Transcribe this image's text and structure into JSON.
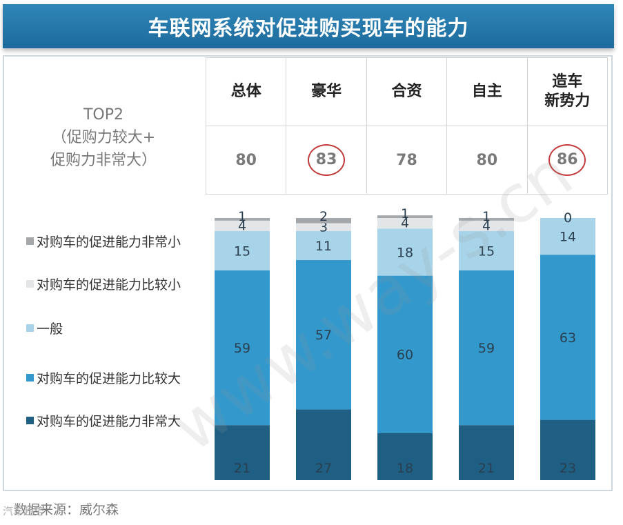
{
  "title": "车联网系统对促进购买现车的能力",
  "top2": {
    "line1": "TOP2",
    "line2": "（促购力较大+",
    "line3": "促购力非常大）",
    "groups": [
      {
        "line1": "总体",
        "line2": "",
        "value": "80",
        "circled": false
      },
      {
        "line1": "豪华",
        "line2": "",
        "value": "83",
        "circled": true
      },
      {
        "line1": "合资",
        "line2": "",
        "value": "78",
        "circled": false
      },
      {
        "line1": "自主",
        "line2": "",
        "value": "80",
        "circled": false
      },
      {
        "line1": "造车",
        "line2": "新势力",
        "value": "86",
        "circled": true
      }
    ]
  },
  "source": "数据来源：威尔森",
  "corner_mark": "汽车趋势",
  "watermark": "www.way-s.cn",
  "chart_data": {
    "type": "bar",
    "stacked": true,
    "categories": [
      "总体",
      "豪华",
      "合资",
      "自主",
      "造车新势力"
    ],
    "ylim": [
      0,
      100
    ],
    "series": [
      {
        "name": "对购车的促进能力非常大",
        "color": "#1f5f83",
        "label_color": "#2a3e4e",
        "values": [
          21,
          27,
          18,
          21,
          23
        ]
      },
      {
        "name": "对购车的促进能力比较大",
        "color": "#3399cc",
        "label_color": "#2a3e4e",
        "values": [
          59,
          57,
          60,
          59,
          63
        ]
      },
      {
        "name": "一般",
        "color": "#a8d4ea",
        "label_color": "#2a3e4e",
        "values": [
          15,
          11,
          18,
          15,
          14
        ]
      },
      {
        "name": "对购车的促进能力比较小",
        "color": "#e3e6e9",
        "label_color": "#2a3e4e",
        "values": [
          4,
          3,
          4,
          4,
          0
        ]
      },
      {
        "name": "对购车的促进能力非常小",
        "color": "#a5a8ab",
        "label_color": "#2a3e4e",
        "values": [
          1,
          2,
          1,
          1,
          0
        ]
      }
    ],
    "legend": {
      "position": "left",
      "order": [
        "对购车的促进能力非常小",
        "对购车的促进能力比较小",
        "一般",
        "对购车的促进能力比较大",
        "对购车的促进能力非常大"
      ]
    }
  }
}
